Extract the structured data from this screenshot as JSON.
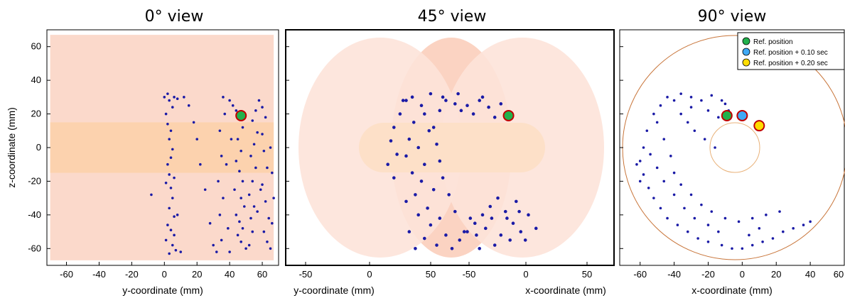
{
  "chart_data": [
    {
      "type": "scatter",
      "title": "0° view",
      "xlabel": "y-coordinate (mm)",
      "ylabel": "z-coordinate (mm)",
      "xlim": [
        -72,
        70
      ],
      "ylim": [
        -70,
        70
      ],
      "x_ticks": [
        -60,
        -40,
        -20,
        0,
        20,
        40,
        60
      ],
      "y_ticks": [
        -60,
        -40,
        -20,
        0,
        20,
        40,
        60
      ],
      "grid": false,
      "series": [
        {
          "values": [
            [
              0,
              30
            ],
            [
              2,
              32
            ],
            [
              3,
              28
            ],
            [
              5,
              24
            ],
            [
              6,
              30
            ],
            [
              8,
              29
            ],
            [
              1,
              20
            ],
            [
              2,
              14
            ],
            [
              4,
              10
            ],
            [
              3,
              5
            ],
            [
              5,
              -1
            ],
            [
              4,
              -6
            ],
            [
              2,
              -10
            ],
            [
              3,
              -16
            ],
            [
              1,
              -21
            ],
            [
              4,
              -24
            ],
            [
              5,
              -30
            ],
            [
              3,
              -36
            ],
            [
              6,
              -41
            ],
            [
              2,
              -46
            ],
            [
              4,
              -49
            ],
            [
              6,
              -52
            ],
            [
              1,
              -55
            ],
            [
              5,
              -58
            ],
            [
              7,
              -61
            ],
            [
              3,
              -63
            ],
            [
              10,
              -62
            ],
            [
              8,
              -40
            ],
            [
              6,
              -18
            ],
            [
              12,
              30
            ],
            [
              15,
              25
            ],
            [
              18,
              15
            ],
            [
              20,
              5
            ],
            [
              22,
              -10
            ],
            [
              25,
              -25
            ],
            [
              28,
              -45
            ],
            [
              30,
              -58
            ],
            [
              32,
              -62
            ],
            [
              35,
              -55
            ],
            [
              34,
              -40
            ],
            [
              36,
              -30
            ],
            [
              33,
              -20
            ],
            [
              35,
              -5
            ],
            [
              34,
              10
            ],
            [
              37,
              20
            ],
            [
              36,
              30
            ],
            [
              40,
              28
            ],
            [
              42,
              25
            ],
            [
              44,
              22
            ],
            [
              46,
              18
            ],
            [
              48,
              12
            ],
            [
              45,
              5
            ],
            [
              47,
              -2
            ],
            [
              44,
              -8
            ],
            [
              46,
              -14
            ],
            [
              48,
              -20
            ],
            [
              43,
              -25
            ],
            [
              47,
              -30
            ],
            [
              49,
              -35
            ],
            [
              44,
              -40
            ],
            [
              46,
              -44
            ],
            [
              48,
              -48
            ],
            [
              45,
              -52
            ],
            [
              47,
              -56
            ],
            [
              50,
              -60
            ],
            [
              52,
              -58
            ],
            [
              54,
              -50
            ],
            [
              53,
              -42
            ],
            [
              55,
              -35
            ],
            [
              52,
              -28
            ],
            [
              54,
              -20
            ],
            [
              56,
              -12
            ],
            [
              53,
              -5
            ],
            [
              55,
              2
            ],
            [
              57,
              9
            ],
            [
              54,
              16
            ],
            [
              56,
              22
            ],
            [
              58,
              28
            ],
            [
              60,
              24
            ],
            [
              62,
              18
            ],
            [
              60,
              8
            ],
            [
              61,
              -2
            ],
            [
              63,
              -12
            ],
            [
              60,
              -22
            ],
            [
              62,
              -32
            ],
            [
              64,
              -42
            ],
            [
              61,
              -50
            ],
            [
              63,
              -56
            ],
            [
              65,
              -60
            ],
            [
              66,
              -45
            ],
            [
              67,
              -30
            ],
            [
              66,
              -15
            ],
            [
              65,
              0
            ],
            [
              -8,
              -28
            ],
            [
              40,
              -62
            ],
            [
              38,
              -10
            ],
            [
              41,
              5
            ],
            [
              39,
              -48
            ],
            [
              57,
              -38
            ],
            [
              59,
              -25
            ]
          ]
        },
        {
          "name": "Ref. position",
          "values": [
            [
              47,
              19
            ]
          ],
          "color": "#22b14c"
        }
      ]
    },
    {
      "type": "scatter",
      "title": "45° view",
      "xlabel_left": "y-coordinate (mm)",
      "xlabel_right": "x-coordinate (mm)",
      "ylim": [
        -70,
        70
      ],
      "x_ticks": [
        -50,
        0,
        50,
        -50,
        0,
        50
      ],
      "grid": false,
      "series": [
        {
          "values": [
            [
              -20,
              25
            ],
            [
              -18,
              20
            ],
            [
              -25,
              15
            ],
            [
              -15,
              10
            ],
            [
              -28,
              5
            ],
            [
              -22,
              0
            ],
            [
              -30,
              -5
            ],
            [
              -18,
              -10
            ],
            [
              -26,
              -15
            ],
            [
              -20,
              -20
            ],
            [
              -12,
              -25
            ],
            [
              -24,
              -28
            ],
            [
              -30,
              -32
            ],
            [
              -16,
              -36
            ],
            [
              -22,
              -40
            ],
            [
              -8,
              -42
            ],
            [
              -14,
              -46
            ],
            [
              -28,
              -50
            ],
            [
              -4,
              -52
            ],
            [
              -18,
              -54
            ],
            [
              -10,
              -58
            ],
            [
              -24,
              -60
            ],
            [
              0,
              -60
            ],
            [
              5,
              -55
            ],
            [
              10,
              -50
            ],
            [
              15,
              -45
            ],
            [
              20,
              -40
            ],
            [
              25,
              -35
            ],
            [
              30,
              -30
            ],
            [
              35,
              -38
            ],
            [
              40,
              -45
            ],
            [
              45,
              -50
            ],
            [
              50,
              -40
            ],
            [
              42,
              -32
            ],
            [
              38,
              -55
            ],
            [
              28,
              -58
            ],
            [
              18,
              -60
            ],
            [
              8,
              -50
            ],
            [
              12,
              -42
            ],
            [
              22,
              -48
            ],
            [
              32,
              -52
            ],
            [
              2,
              -38
            ],
            [
              -2,
              -28
            ],
            [
              -6,
              -18
            ],
            [
              -8,
              -8
            ],
            [
              -10,
              2
            ],
            [
              -12,
              12
            ],
            [
              -8,
              22
            ],
            [
              -4,
              28
            ],
            [
              2,
              26
            ],
            [
              6,
              22
            ],
            [
              10,
              25
            ],
            [
              14,
              20
            ],
            [
              18,
              28
            ],
            [
              24,
              24
            ],
            [
              28,
              18
            ],
            [
              32,
              26
            ],
            [
              -30,
              28
            ],
            [
              -34,
              20
            ],
            [
              -38,
              12
            ],
            [
              -40,
              4
            ],
            [
              -36,
              -4
            ],
            [
              -42,
              -10
            ],
            [
              -38,
              -18
            ],
            [
              -32,
              28
            ],
            [
              -26,
              30
            ],
            [
              -14,
              32
            ],
            [
              -6,
              30
            ],
            [
              4,
              32
            ],
            [
              20,
              30
            ],
            [
              44,
              -38
            ],
            [
              36,
              -42
            ],
            [
              48,
              -55
            ],
            [
              55,
              -48
            ],
            [
              26,
              -42
            ],
            [
              16,
              -52
            ]
          ]
        },
        {
          "name": "Ref. position",
          "values": [
            [
              37,
              19
            ]
          ],
          "color": "#22b14c"
        }
      ]
    },
    {
      "type": "scatter",
      "title": "90° view",
      "xlabel": "x-coordinate (mm)",
      "xlim": [
        -72,
        60
      ],
      "ylim": [
        -70,
        70
      ],
      "x_ticks": [
        -60,
        -40,
        -20,
        0,
        20,
        40,
        "60"
      ],
      "grid": false,
      "legend_position": "top-right",
      "legend": [
        "Ref. position",
        "Ref. position + 0.10 sec",
        "Ref. position + 0.20 sec"
      ],
      "series": [
        {
          "values": [
            [
              -52,
              20
            ],
            [
              -48,
              25
            ],
            [
              -44,
              30
            ],
            [
              -40,
              28
            ],
            [
              -36,
              32
            ],
            [
              -30,
              30
            ],
            [
              -24,
              28
            ],
            [
              -18,
              31
            ],
            [
              -12,
              28
            ],
            [
              -8,
              22
            ],
            [
              -56,
              10
            ],
            [
              -58,
              0
            ],
            [
              -60,
              -8
            ],
            [
              -58,
              -16
            ],
            [
              -55,
              -24
            ],
            [
              -52,
              -30
            ],
            [
              -48,
              -36
            ],
            [
              -44,
              -42
            ],
            [
              -38,
              -46
            ],
            [
              -32,
              -50
            ],
            [
              -26,
              -54
            ],
            [
              -20,
              -56
            ],
            [
              -12,
              -58
            ],
            [
              -6,
              -60
            ],
            [
              0,
              -60
            ],
            [
              6,
              -58
            ],
            [
              12,
              -56
            ],
            [
              18,
              -54
            ],
            [
              24,
              -50
            ],
            [
              30,
              -48
            ],
            [
              36,
              -46
            ],
            [
              40,
              -44
            ],
            [
              -50,
              15
            ],
            [
              -46,
              5
            ],
            [
              -42,
              -5
            ],
            [
              -40,
              -15
            ],
            [
              -36,
              -22
            ],
            [
              -30,
              -28
            ],
            [
              -24,
              -34
            ],
            [
              -18,
              -38
            ],
            [
              -10,
              -42
            ],
            [
              -2,
              -44
            ],
            [
              6,
              -42
            ],
            [
              14,
              -40
            ],
            [
              22,
              -38
            ],
            [
              -54,
              -4
            ],
            [
              -50,
              -12
            ],
            [
              -46,
              -20
            ],
            [
              -40,
              -28
            ],
            [
              -34,
              -36
            ],
            [
              -28,
              -42
            ],
            [
              -20,
              -46
            ],
            [
              -14,
              -50
            ],
            [
              -36,
              20
            ],
            [
              -32,
              15
            ],
            [
              -28,
              10
            ],
            [
              -22,
              5
            ],
            [
              -16,
              0
            ],
            [
              -30,
              24
            ],
            [
              -20,
              22
            ],
            [
              -14,
              18
            ],
            [
              -10,
              26
            ],
            [
              4,
              -52
            ],
            [
              10,
              -48
            ],
            [
              -62,
              -10
            ],
            [
              -60,
              -20
            ]
          ]
        },
        {
          "name": "Ref. position",
          "values": [
            [
              -9,
              19
            ]
          ],
          "color": "#22b14c"
        },
        {
          "name": "Ref. position + 0.10 sec",
          "values": [
            [
              0,
              19
            ]
          ],
          "color": "#3fa9f5"
        },
        {
          "name": "Ref. position + 0.20 sec",
          "values": [
            [
              10,
              13
            ]
          ],
          "color": "#ffdd00"
        }
      ]
    }
  ]
}
